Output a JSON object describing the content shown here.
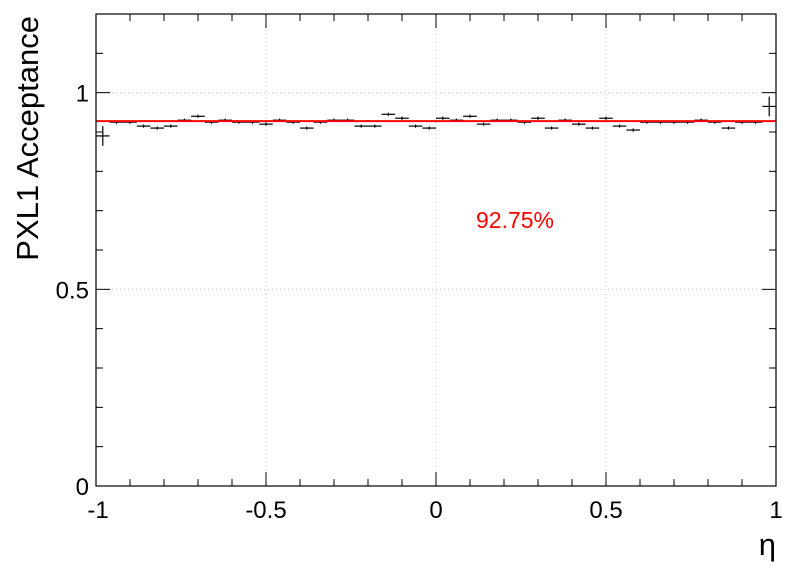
{
  "chart_data": {
    "type": "scatter",
    "xlabel": "η",
    "ylabel": "PXL1 Acceptance",
    "xlim": [
      -1,
      1
    ],
    "ylim": [
      0,
      1.2
    ],
    "x_ticks": [
      "-1",
      "-0.5",
      "0",
      "0.5",
      "1"
    ],
    "y_ticks": [
      "0",
      "0.5",
      "1"
    ],
    "grid": true,
    "bin_width": 0.04,
    "x": [
      -0.98,
      -0.94,
      -0.9,
      -0.86,
      -0.82,
      -0.78,
      -0.74,
      -0.7,
      -0.66,
      -0.62,
      -0.58,
      -0.54,
      -0.5,
      -0.46,
      -0.42,
      -0.38,
      -0.34,
      -0.3,
      -0.26,
      -0.22,
      -0.18,
      -0.14,
      -0.1,
      -0.06,
      -0.02,
      0.02,
      0.06,
      0.1,
      0.14,
      0.18,
      0.22,
      0.26,
      0.3,
      0.34,
      0.38,
      0.42,
      0.46,
      0.5,
      0.54,
      0.58,
      0.62,
      0.66,
      0.7,
      0.74,
      0.78,
      0.82,
      0.86,
      0.9,
      0.94,
      0.98
    ],
    "values": [
      0.89,
      0.925,
      0.925,
      0.915,
      0.91,
      0.915,
      0.93,
      0.94,
      0.925,
      0.93,
      0.925,
      0.925,
      0.92,
      0.93,
      0.925,
      0.91,
      0.925,
      0.93,
      0.93,
      0.915,
      0.915,
      0.945,
      0.935,
      0.915,
      0.91,
      0.935,
      0.93,
      0.94,
      0.92,
      0.93,
      0.93,
      0.925,
      0.935,
      0.91,
      0.93,
      0.92,
      0.91,
      0.935,
      0.915,
      0.905,
      0.925,
      0.925,
      0.925,
      0.925,
      0.93,
      0.925,
      0.91,
      0.925,
      0.925,
      0.965
    ],
    "errors": [
      0.025,
      0.004,
      0.004,
      0.004,
      0.004,
      0.004,
      0.004,
      0.004,
      0.004,
      0.004,
      0.004,
      0.004,
      0.004,
      0.004,
      0.004,
      0.004,
      0.004,
      0.004,
      0.004,
      0.004,
      0.004,
      0.004,
      0.004,
      0.004,
      0.004,
      0.004,
      0.004,
      0.004,
      0.004,
      0.004,
      0.004,
      0.004,
      0.004,
      0.004,
      0.004,
      0.004,
      0.004,
      0.004,
      0.004,
      0.004,
      0.004,
      0.004,
      0.004,
      0.004,
      0.004,
      0.004,
      0.004,
      0.004,
      0.004,
      0.025
    ],
    "fit_value": 0.9275,
    "fit_color": "#ff0000",
    "marker_color": "#000000",
    "annotation": "92.75%",
    "annotation_color": "#ff0000"
  }
}
